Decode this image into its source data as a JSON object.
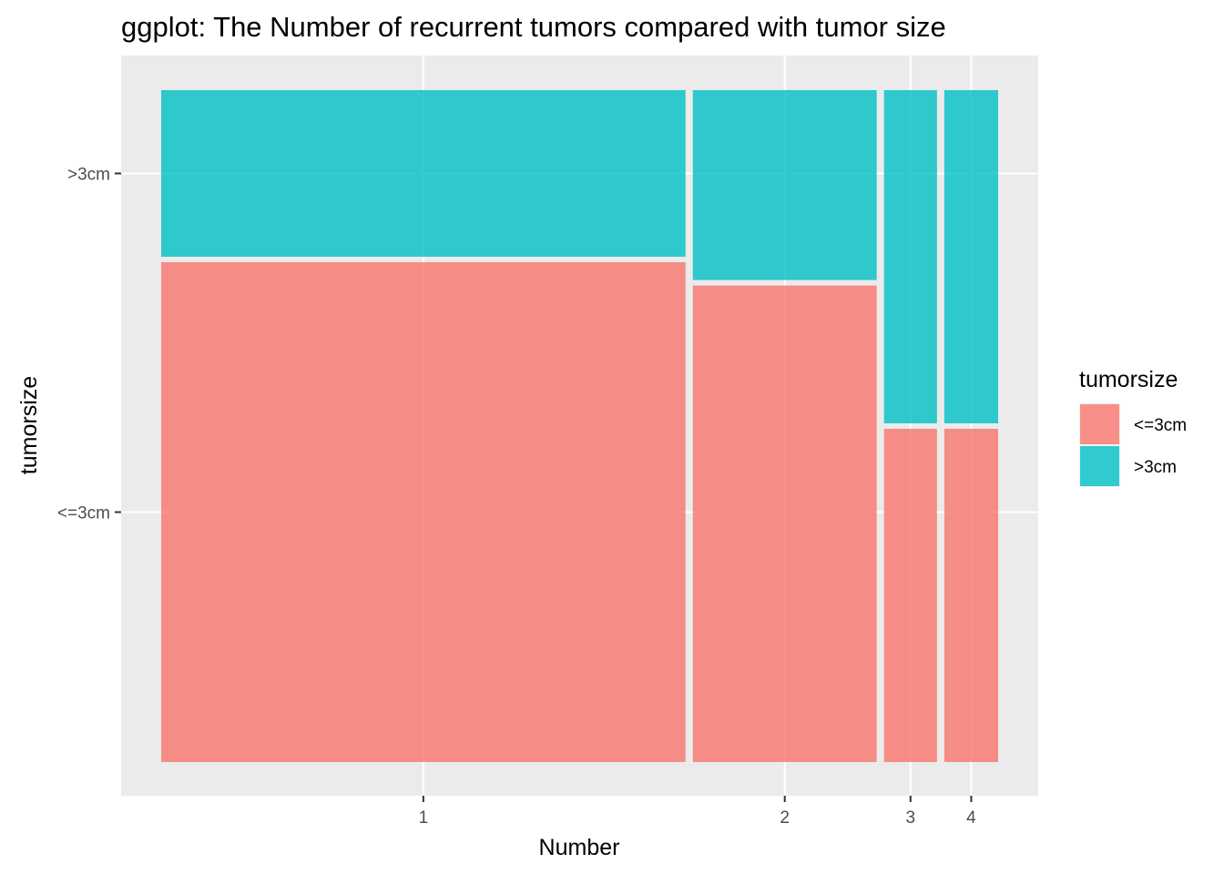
{
  "chart_data": {
    "type": "mosaic",
    "title": "ggplot: The Number of recurrent tumors compared with tumor size",
    "xlabel": "Number",
    "ylabel": "tumorsize",
    "categories": [
      "1",
      "2",
      "3",
      "4"
    ],
    "column_widths": [
      0.633,
      0.222,
      0.064,
      0.065
    ],
    "fill_levels": [
      "<=3cm",
      ">3cm"
    ],
    "y_tick_labels": [
      "<=3cm",
      ">3cm"
    ],
    "series": [
      {
        "name": "<=3cm",
        "values": [
          0.75,
          0.715,
          0.5,
          0.5
        ]
      },
      {
        "name": ">3cm",
        "values": [
          0.25,
          0.285,
          0.5,
          0.5
        ]
      }
    ],
    "legend": {
      "title": "tumorsize",
      "position": "right"
    },
    "grid": true,
    "colors": {
      "<=3cm": "#F8766D",
      ">3cm": "#00BFC4",
      "panel": "#EBEBEB",
      "grid": "#FFFFFF"
    }
  }
}
